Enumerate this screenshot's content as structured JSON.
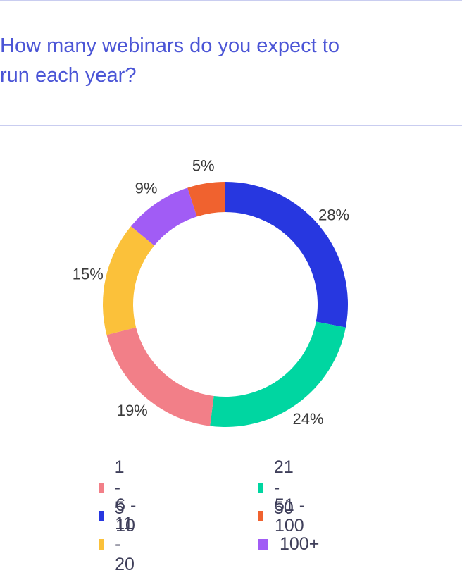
{
  "header": {
    "title_line1": "How many webinars do you expect to",
    "title_line2": "run each year?"
  },
  "chart_data": {
    "type": "pie",
    "variant": "donut",
    "title": "How many webinars do you expect to run each year?",
    "categories": [
      "1 - 5",
      "6 - 10",
      "11 - 20",
      "21 - 50",
      "51 - 100",
      "100+"
    ],
    "values": [
      19,
      28,
      15,
      24,
      5,
      9
    ],
    "labels": [
      "19%",
      "28%",
      "15%",
      "24%",
      "5%",
      "9%"
    ],
    "colors": [
      "#f27f88",
      "#2737e0",
      "#fbc13a",
      "#00d6a1",
      "#f0622f",
      "#a15cf5"
    ],
    "draw_order": [
      "6 - 10",
      "21 - 50",
      "1 - 5",
      "11 - 20",
      "100+",
      "51 - 100"
    ],
    "legend_placement": "bottom",
    "legend_columns": [
      [
        "1 - 5",
        "6 - 10",
        "11 - 20"
      ],
      [
        "21 - 50",
        "51 - 100",
        "100+"
      ]
    ]
  }
}
